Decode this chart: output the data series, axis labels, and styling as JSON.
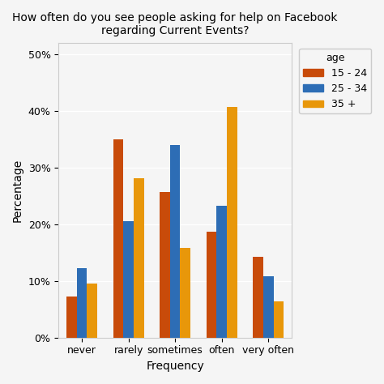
{
  "title": "How often do you see people asking for help on Facebook\nregarding Current Events?",
  "xlabel": "Frequency",
  "ylabel": "Percentage",
  "categories": [
    "never",
    "rarely",
    "sometimes",
    "often",
    "very often"
  ],
  "series": {
    "15 - 24": [
      7.2,
      35.0,
      25.7,
      18.7,
      14.2
    ],
    "25 - 34": [
      12.3,
      20.5,
      34.0,
      23.3,
      10.9
    ],
    "35 +": [
      9.5,
      28.2,
      15.8,
      40.7,
      6.4
    ]
  },
  "colors": {
    "15 - 24": "#C84B0A",
    "25 - 34": "#2D6DB5",
    "35 +": "#E8970A"
  },
  "ylim": [
    0,
    52
  ],
  "yticks": [
    0,
    10,
    20,
    30,
    40,
    50
  ],
  "ytick_labels": [
    "0%",
    "10%",
    "20%",
    "30%",
    "40%",
    "50%"
  ],
  "legend_title": "age",
  "background_color": "#F5F5F5",
  "plot_bg_color": "#F5F5F5",
  "grid_color": "#FFFFFF",
  "bar_width": 0.22,
  "title_fontsize": 10,
  "axis_label_fontsize": 10,
  "tick_fontsize": 9,
  "legend_fontsize": 9
}
